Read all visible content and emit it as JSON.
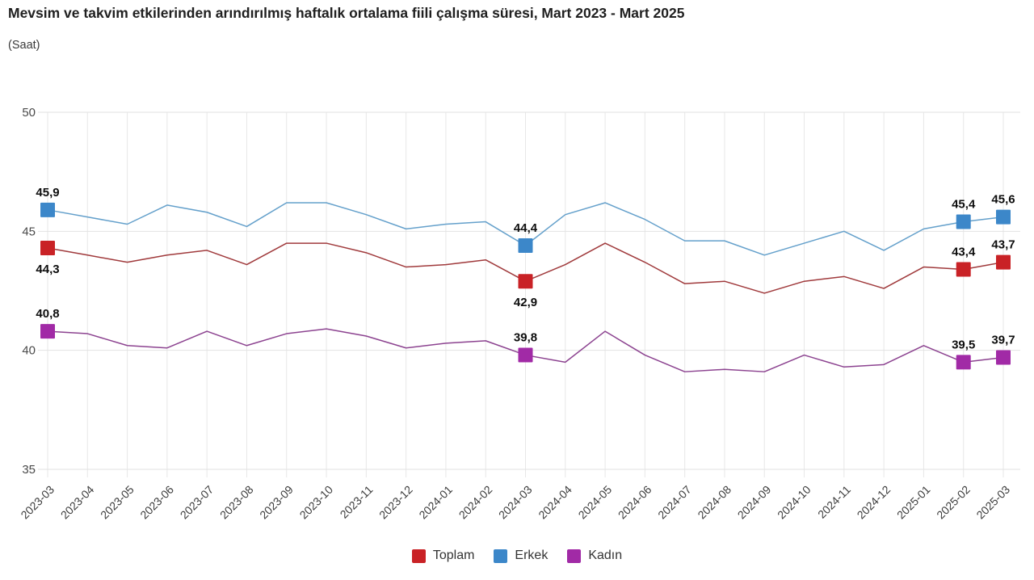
{
  "header": {
    "title": "Mevsim ve takvim etkilerinden arındırılmış haftalık ortalama fiili çalışma süresi, Mart 2023 - Mart 2025",
    "subtitle": "(Saat)"
  },
  "chart_data": {
    "type": "line",
    "title": "Mevsim ve takvim etkilerinden arındırılmış haftalık ortalama fiili çalışma süresi, Mart 2023 - Mart 2025",
    "subtitle": "(Saat)",
    "xlabel": "",
    "ylabel": "Saat",
    "ylim": [
      35,
      50
    ],
    "yticks": [
      35,
      40,
      45,
      50
    ],
    "grid": true,
    "legend_position": "bottom",
    "decimal_separator": ",",
    "categories": [
      "2023-03",
      "2023-04",
      "2023-05",
      "2023-06",
      "2023-07",
      "2023-08",
      "2023-09",
      "2023-10",
      "2023-11",
      "2023-12",
      "2024-01",
      "2024-02",
      "2024-03",
      "2024-04",
      "2024-05",
      "2024-06",
      "2024-07",
      "2024-08",
      "2024-09",
      "2024-10",
      "2024-11",
      "2024-12",
      "2025-01",
      "2025-02",
      "2025-03"
    ],
    "series": [
      {
        "name": "Toplam",
        "color": "#c92226",
        "line_color": "#a03a3c",
        "values": [
          44.3,
          44.0,
          43.7,
          44.0,
          44.2,
          43.6,
          44.5,
          44.5,
          44.1,
          43.5,
          43.6,
          43.8,
          42.9,
          43.6,
          44.5,
          43.7,
          42.8,
          42.9,
          42.4,
          42.9,
          43.1,
          42.6,
          43.5,
          43.4,
          43.7
        ],
        "labels": [
          {
            "index": 0,
            "text": "44,3",
            "position": "below"
          },
          {
            "index": 12,
            "text": "42,9",
            "position": "below"
          },
          {
            "index": 23,
            "text": "43,4",
            "position": "above"
          },
          {
            "index": 24,
            "text": "43,7",
            "position": "above"
          }
        ]
      },
      {
        "name": "Erkek",
        "color": "#3c87c9",
        "line_color": "#64a0cb",
        "values": [
          45.9,
          45.6,
          45.3,
          46.1,
          45.8,
          45.2,
          46.2,
          46.2,
          45.7,
          45.1,
          45.3,
          45.4,
          44.4,
          45.7,
          46.2,
          45.5,
          44.6,
          44.6,
          44.0,
          44.5,
          45.0,
          44.2,
          45.1,
          45.4,
          45.6
        ],
        "labels": [
          {
            "index": 0,
            "text": "45,9",
            "position": "above"
          },
          {
            "index": 12,
            "text": "44,4",
            "position": "above"
          },
          {
            "index": 23,
            "text": "45,4",
            "position": "above"
          },
          {
            "index": 24,
            "text": "45,6",
            "position": "above"
          }
        ]
      },
      {
        "name": "Kadın",
        "color": "#a12aa6",
        "line_color": "#8c4390",
        "values": [
          40.8,
          40.7,
          40.2,
          40.1,
          40.8,
          40.2,
          40.7,
          40.9,
          40.6,
          40.1,
          40.3,
          40.4,
          39.8,
          39.5,
          40.8,
          39.8,
          39.1,
          39.2,
          39.1,
          39.8,
          39.3,
          39.4,
          40.2,
          39.5,
          39.7
        ],
        "labels": [
          {
            "index": 0,
            "text": "40,8",
            "position": "above"
          },
          {
            "index": 12,
            "text": "39,8",
            "position": "above"
          },
          {
            "index": 23,
            "text": "39,5",
            "position": "above"
          },
          {
            "index": 24,
            "text": "39,7",
            "position": "above"
          }
        ]
      }
    ]
  }
}
